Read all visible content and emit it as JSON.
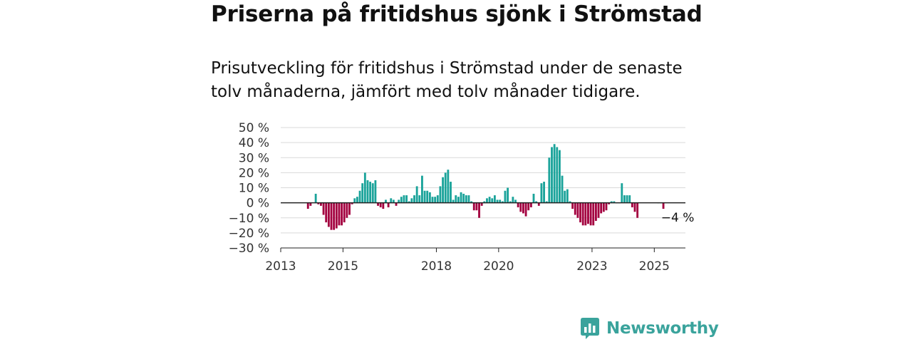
{
  "header": {
    "title": "Priserna på fritidshus sjönk i Strömstad",
    "subtitle": "Prisutveckling för fritidshus i Strömstad under de senaste tolv månaderna, jämfört med tolv månader tidigare."
  },
  "chart_data": {
    "type": "bar",
    "title": "Priserna på fritidshus sjönk i Strömstad",
    "subtitle": "Prisutveckling för fritidshus i Strömstad under de senaste tolv månaderna, jämfört med tolv månader tidigare.",
    "xlabel": "",
    "ylabel": "",
    "ylim": [
      -30,
      50
    ],
    "yticks": [
      -30,
      -20,
      -10,
      0,
      10,
      20,
      30,
      40,
      50
    ],
    "ytick_labels": [
      "−30 %",
      "−20 %",
      "−10 %",
      "0 %",
      "10 %",
      "20 %",
      "30 %",
      "40 %",
      "50 %"
    ],
    "xlim": [
      "2013-01",
      "2026-01"
    ],
    "xticks": [
      "2013-01",
      "2015-01",
      "2018-01",
      "2020-01",
      "2023-01",
      "2025-01"
    ],
    "xtick_labels": [
      "2013",
      "2015",
      "2018",
      "2020",
      "2023",
      "2025"
    ],
    "grid": true,
    "colors": {
      "positive": "#1aa39a",
      "negative": "#a3003f",
      "grid": "#d9d9d9",
      "axis": "#222222"
    },
    "annotation": {
      "text": "−4 %",
      "date": "2025-10"
    },
    "data": [
      [
        "2013-11",
        -4
      ],
      [
        "2013-12",
        -2
      ],
      [
        "2014-02",
        6
      ],
      [
        "2014-03",
        -1
      ],
      [
        "2014-04",
        -2
      ],
      [
        "2014-05",
        -8
      ],
      [
        "2014-06",
        -13
      ],
      [
        "2014-07",
        -16
      ],
      [
        "2014-08",
        -18
      ],
      [
        "2014-09",
        -18
      ],
      [
        "2014-10",
        -17
      ],
      [
        "2014-11",
        -15
      ],
      [
        "2014-12",
        -15
      ],
      [
        "2015-01",
        -13
      ],
      [
        "2015-02",
        -10
      ],
      [
        "2015-03",
        -8
      ],
      [
        "2015-04",
        -1
      ],
      [
        "2015-05",
        3
      ],
      [
        "2015-06",
        4
      ],
      [
        "2015-07",
        8
      ],
      [
        "2015-08",
        13
      ],
      [
        "2015-09",
        20
      ],
      [
        "2015-10",
        15
      ],
      [
        "2015-11",
        14
      ],
      [
        "2015-12",
        13
      ],
      [
        "2016-01",
        15
      ],
      [
        "2016-02",
        -2
      ],
      [
        "2016-03",
        -3
      ],
      [
        "2016-04",
        -4
      ],
      [
        "2016-05",
        2
      ],
      [
        "2016-06",
        -3
      ],
      [
        "2016-07",
        3
      ],
      [
        "2016-08",
        2
      ],
      [
        "2016-09",
        -2
      ],
      [
        "2016-10",
        2
      ],
      [
        "2016-11",
        4
      ],
      [
        "2016-12",
        5
      ],
      [
        "2017-01",
        5
      ],
      [
        "2017-02",
        1
      ],
      [
        "2017-03",
        3
      ],
      [
        "2017-04",
        5
      ],
      [
        "2017-05",
        11
      ],
      [
        "2017-06",
        5
      ],
      [
        "2017-07",
        18
      ],
      [
        "2017-08",
        8
      ],
      [
        "2017-09",
        8
      ],
      [
        "2017-10",
        7
      ],
      [
        "2017-11",
        4
      ],
      [
        "2017-12",
        4
      ],
      [
        "2018-01",
        5
      ],
      [
        "2018-02",
        11
      ],
      [
        "2018-03",
        17
      ],
      [
        "2018-04",
        20
      ],
      [
        "2018-05",
        22
      ],
      [
        "2018-06",
        14
      ],
      [
        "2018-07",
        2
      ],
      [
        "2018-08",
        5
      ],
      [
        "2018-09",
        4
      ],
      [
        "2018-10",
        7
      ],
      [
        "2018-11",
        6
      ],
      [
        "2018-12",
        5
      ],
      [
        "2019-01",
        5
      ],
      [
        "2019-02",
        1
      ],
      [
        "2019-03",
        -5
      ],
      [
        "2019-04",
        -5
      ],
      [
        "2019-05",
        -10
      ],
      [
        "2019-06",
        -2
      ],
      [
        "2019-07",
        1
      ],
      [
        "2019-08",
        3
      ],
      [
        "2019-09",
        4
      ],
      [
        "2019-10",
        3
      ],
      [
        "2019-11",
        5
      ],
      [
        "2019-12",
        2
      ],
      [
        "2020-01",
        2
      ],
      [
        "2020-02",
        1
      ],
      [
        "2020-03",
        8
      ],
      [
        "2020-04",
        10
      ],
      [
        "2020-05",
        1
      ],
      [
        "2020-06",
        4
      ],
      [
        "2020-07",
        2
      ],
      [
        "2020-08",
        -3
      ],
      [
        "2020-09",
        -6
      ],
      [
        "2020-10",
        -7
      ],
      [
        "2020-11",
        -9
      ],
      [
        "2020-12",
        -5
      ],
      [
        "2021-01",
        -3
      ],
      [
        "2021-02",
        6
      ],
      [
        "2021-03",
        1
      ],
      [
        "2021-04",
        -2
      ],
      [
        "2021-05",
        13
      ],
      [
        "2021-06",
        14
      ],
      [
        "2021-07",
        1
      ],
      [
        "2021-08",
        30
      ],
      [
        "2021-09",
        37
      ],
      [
        "2021-10",
        39
      ],
      [
        "2021-11",
        37
      ],
      [
        "2021-12",
        35
      ],
      [
        "2022-01",
        18
      ],
      [
        "2022-02",
        8
      ],
      [
        "2022-03",
        9
      ],
      [
        "2022-04",
        1
      ],
      [
        "2022-05",
        -4
      ],
      [
        "2022-06",
        -8
      ],
      [
        "2022-07",
        -10
      ],
      [
        "2022-08",
        -13
      ],
      [
        "2022-09",
        -15
      ],
      [
        "2022-10",
        -15
      ],
      [
        "2022-11",
        -14
      ],
      [
        "2022-12",
        -15
      ],
      [
        "2023-01",
        -15
      ],
      [
        "2023-02",
        -12
      ],
      [
        "2023-03",
        -10
      ],
      [
        "2023-04",
        -7
      ],
      [
        "2023-05",
        -6
      ],
      [
        "2023-06",
        -5
      ],
      [
        "2023-07",
        -1
      ],
      [
        "2023-08",
        1
      ],
      [
        "2023-09",
        1
      ],
      [
        "2023-10",
        0
      ],
      [
        "2023-11",
        0
      ],
      [
        "2023-12",
        13
      ],
      [
        "2024-01",
        5
      ],
      [
        "2024-02",
        5
      ],
      [
        "2024-03",
        5
      ],
      [
        "2024-04",
        -3
      ],
      [
        "2024-05",
        -6
      ],
      [
        "2024-06",
        -10
      ],
      [
        "2025-02",
        0
      ],
      [
        "2025-03",
        0
      ],
      [
        "2025-04",
        -4
      ]
    ]
  },
  "brand": {
    "name": "Newsworthy",
    "icon": "newsworthy-logo-icon"
  }
}
